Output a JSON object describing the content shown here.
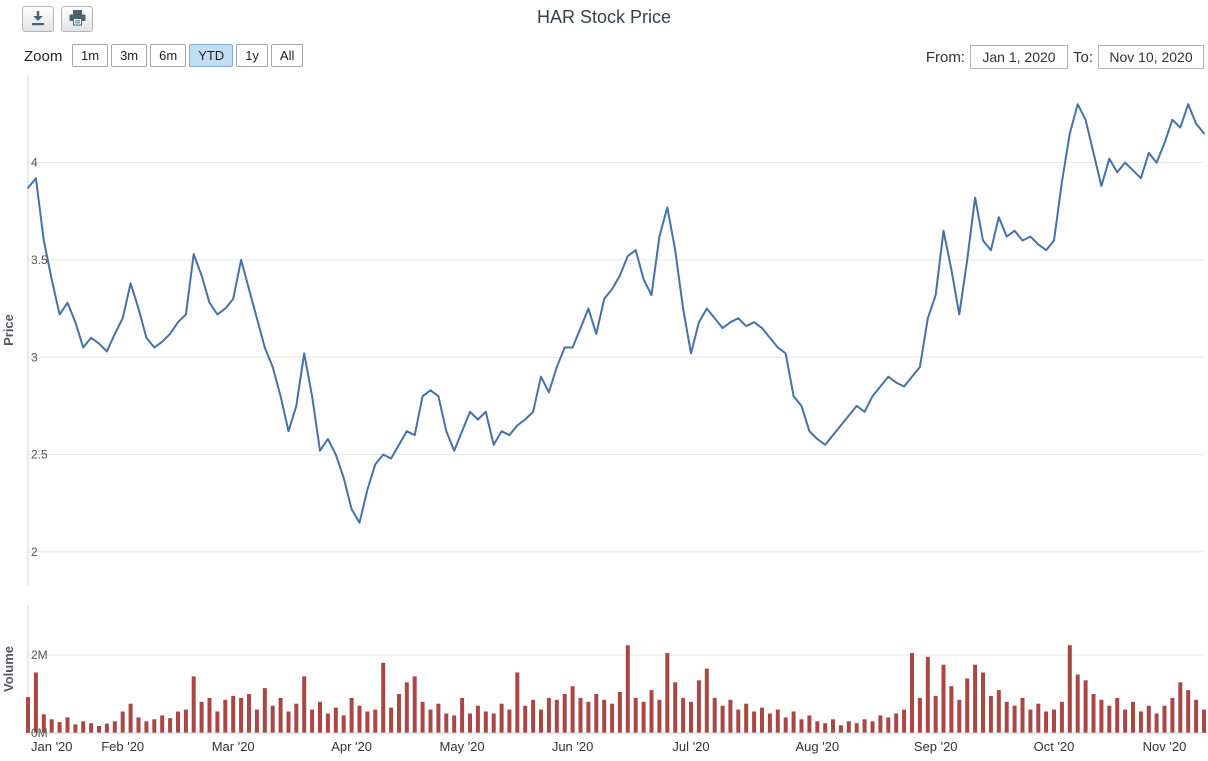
{
  "header": {
    "title": "HAR Stock Price",
    "icons": [
      "download-icon",
      "print-icon"
    ]
  },
  "controls": {
    "zoom_label": "Zoom",
    "zoom_buttons": [
      "1m",
      "3m",
      "6m",
      "YTD",
      "1y",
      "All"
    ],
    "zoom_selected": "YTD",
    "from_label": "From:",
    "from_value": "Jan 1, 2020",
    "to_label": "To:",
    "to_value": "Nov 10, 2020"
  },
  "colors": {
    "price_line": "#4572A7",
    "volume_bar": "#AA4643",
    "gridline": "#e6e6e6",
    "axis_line": "#c8cdd2",
    "tick_label": "#555555",
    "month_label": "#333333",
    "selected_zoom_bg": "#c3ddf3"
  },
  "chart_data": {
    "title": "HAR Stock Price",
    "type": "line+bar",
    "xticklabels": [
      "Jan '20",
      "Feb '20",
      "Mar '20",
      "Apr '20",
      "May '20",
      "Jun '20",
      "Jul '20",
      "Aug '20",
      "Sep '20",
      "Oct '20",
      "Nov '20"
    ],
    "x_dates": [
      "2020-01-02",
      "2020-01-03",
      "2020-01-06",
      "2020-01-08",
      "2020-01-10",
      "2020-01-14",
      "2020-01-15",
      "2020-01-16",
      "2020-01-17",
      "2020-01-20",
      "2020-01-21",
      "2020-01-31",
      "2020-02-03",
      "2020-02-04",
      "2020-02-05",
      "2020-02-06",
      "2020-02-07",
      "2020-02-10",
      "2020-02-12",
      "2020-02-14",
      "2020-02-17",
      "2020-02-19",
      "2020-02-21",
      "2020-02-24",
      "2020-02-26",
      "2020-02-28",
      "2020-03-02",
      "2020-03-04",
      "2020-03-06",
      "2020-03-09",
      "2020-03-10",
      "2020-03-12",
      "2020-03-13",
      "2020-03-16",
      "2020-03-18",
      "2020-03-19",
      "2020-03-23",
      "2020-03-25",
      "2020-03-26",
      "2020-03-30",
      "2020-03-31",
      "2020-04-01",
      "2020-04-03",
      "2020-04-06",
      "2020-04-07",
      "2020-04-09",
      "2020-04-10",
      "2020-04-13",
      "2020-04-15",
      "2020-04-17",
      "2020-04-20",
      "2020-04-22",
      "2020-04-24",
      "2020-04-27",
      "2020-04-29",
      "2020-05-04",
      "2020-05-06",
      "2020-05-08",
      "2020-05-11",
      "2020-05-12",
      "2020-05-14",
      "2020-05-15",
      "2020-05-18",
      "2020-05-20",
      "2020-05-21",
      "2020-05-22",
      "2020-05-26",
      "2020-05-28",
      "2020-05-29",
      "2020-06-01",
      "2020-06-03",
      "2020-06-05",
      "2020-06-08",
      "2020-06-09",
      "2020-06-11",
      "2020-06-12",
      "2020-06-15",
      "2020-06-16",
      "2020-06-17",
      "2020-06-18",
      "2020-06-22",
      "2020-06-24",
      "2020-06-26",
      "2020-06-29",
      "2020-07-01",
      "2020-07-02",
      "2020-07-06",
      "2020-07-08",
      "2020-07-09",
      "2020-07-10",
      "2020-07-13",
      "2020-07-14",
      "2020-07-16",
      "2020-07-17",
      "2020-07-20",
      "2020-07-22",
      "2020-07-24",
      "2020-07-27",
      "2020-07-29",
      "2020-07-31",
      "2020-08-03",
      "2020-08-05",
      "2020-08-07",
      "2020-08-10",
      "2020-08-11",
      "2020-08-13",
      "2020-08-14",
      "2020-08-17",
      "2020-08-19",
      "2020-08-21",
      "2020-08-24",
      "2020-08-25",
      "2020-08-27",
      "2020-08-28",
      "2020-08-31",
      "2020-09-01",
      "2020-09-03",
      "2020-09-04",
      "2020-09-08",
      "2020-09-09",
      "2020-09-10",
      "2020-09-14",
      "2020-09-15",
      "2020-09-16",
      "2020-09-18",
      "2020-09-21",
      "2020-09-23",
      "2020-09-25",
      "2020-09-28",
      "2020-09-30",
      "2020-10-01",
      "2020-10-05",
      "2020-10-06",
      "2020-10-08",
      "2020-10-09",
      "2020-10-12",
      "2020-10-14",
      "2020-10-15",
      "2020-10-19",
      "2020-10-21",
      "2020-10-23",
      "2020-10-26",
      "2020-10-28",
      "2020-10-30",
      "2020-11-02",
      "2020-11-04",
      "2020-11-05",
      "2020-11-06",
      "2020-11-09",
      "2020-11-10"
    ],
    "series": [
      {
        "name": "Price",
        "type": "line",
        "ylabel": "Price",
        "color": "#4572A7",
        "yticks": [
          "2",
          "2.5",
          "3",
          "3.5",
          "4"
        ],
        "ytick_values": [
          2,
          2.5,
          3,
          3.5,
          4
        ],
        "ymin": 1.83,
        "ymax": 4.45,
        "values": [
          3.87,
          3.92,
          3.6,
          3.4,
          3.22,
          3.28,
          3.18,
          3.05,
          3.1,
          3.07,
          3.03,
          3.12,
          3.2,
          3.38,
          3.25,
          3.1,
          3.05,
          3.08,
          3.12,
          3.18,
          3.22,
          3.53,
          3.42,
          3.28,
          3.22,
          3.25,
          3.3,
          3.5,
          3.35,
          3.2,
          3.05,
          2.95,
          2.8,
          2.62,
          2.75,
          3.02,
          2.8,
          2.52,
          2.58,
          2.5,
          2.38,
          2.22,
          2.15,
          2.32,
          2.45,
          2.5,
          2.48,
          2.55,
          2.62,
          2.6,
          2.8,
          2.83,
          2.8,
          2.62,
          2.52,
          2.62,
          2.72,
          2.68,
          2.72,
          2.55,
          2.62,
          2.6,
          2.65,
          2.68,
          2.72,
          2.9,
          2.82,
          2.95,
          3.05,
          3.05,
          3.15,
          3.25,
          3.12,
          3.3,
          3.35,
          3.42,
          3.52,
          3.55,
          3.4,
          3.32,
          3.62,
          3.77,
          3.55,
          3.25,
          3.02,
          3.18,
          3.25,
          3.2,
          3.15,
          3.18,
          3.2,
          3.16,
          3.18,
          3.15,
          3.1,
          3.05,
          3.02,
          2.8,
          2.75,
          2.62,
          2.58,
          2.55,
          2.6,
          2.65,
          2.7,
          2.75,
          2.72,
          2.8,
          2.85,
          2.9,
          2.87,
          2.85,
          2.9,
          2.95,
          3.2,
          3.32,
          3.65,
          3.45,
          3.22,
          3.5,
          3.82,
          3.6,
          3.55,
          3.72,
          3.62,
          3.65,
          3.6,
          3.62,
          3.58,
          3.55,
          3.6,
          3.9,
          4.15,
          4.3,
          4.22,
          4.05,
          3.88,
          4.02,
          3.95,
          4.0,
          3.96,
          3.92,
          4.05,
          4.0,
          4.1,
          4.22,
          4.18,
          4.3,
          4.2,
          4.15
        ]
      },
      {
        "name": "Volume",
        "type": "bar",
        "ylabel": "Volume",
        "color": "#AA4643",
        "yticks": [
          "0M",
          "2M"
        ],
        "ytick_values": [
          0,
          2
        ],
        "ymin": 0,
        "ymax": 3.28,
        "unit": "M",
        "values": [
          0.92,
          1.55,
          0.48,
          0.35,
          0.28,
          0.4,
          0.22,
          0.3,
          0.25,
          0.18,
          0.24,
          0.3,
          0.55,
          0.75,
          0.4,
          0.3,
          0.35,
          0.45,
          0.38,
          0.55,
          0.6,
          1.45,
          0.8,
          0.9,
          0.55,
          0.85,
          0.95,
          0.9,
          1.0,
          0.6,
          1.15,
          0.7,
          0.9,
          0.55,
          0.75,
          1.45,
          0.6,
          0.8,
          0.5,
          0.65,
          0.45,
          0.9,
          0.7,
          0.55,
          0.6,
          1.8,
          0.65,
          1.0,
          1.3,
          1.45,
          0.8,
          0.6,
          0.75,
          0.5,
          0.45,
          0.9,
          0.5,
          0.7,
          0.55,
          0.5,
          0.75,
          0.6,
          1.55,
          0.7,
          0.85,
          0.6,
          0.9,
          0.85,
          1.0,
          1.2,
          0.9,
          0.8,
          1.0,
          0.85,
          0.75,
          1.05,
          2.25,
          0.9,
          0.8,
          1.1,
          0.85,
          2.05,
          1.3,
          0.9,
          0.8,
          1.35,
          1.65,
          0.9,
          0.7,
          0.85,
          0.6,
          0.75,
          0.55,
          0.65,
          0.5,
          0.6,
          0.4,
          0.55,
          0.35,
          0.45,
          0.3,
          0.25,
          0.35,
          0.2,
          0.3,
          0.25,
          0.35,
          0.3,
          0.45,
          0.4,
          0.5,
          0.6,
          2.05,
          0.9,
          1.95,
          0.95,
          1.75,
          1.2,
          0.85,
          1.4,
          1.75,
          1.55,
          0.95,
          1.1,
          0.8,
          0.7,
          0.9,
          0.6,
          0.75,
          0.55,
          0.6,
          0.8,
          2.25,
          1.5,
          1.35,
          1.0,
          0.85,
          0.7,
          0.9,
          0.6,
          0.8,
          0.55,
          0.7,
          0.5,
          0.7,
          0.9,
          1.3,
          1.1,
          0.85,
          0.6
        ]
      }
    ]
  }
}
